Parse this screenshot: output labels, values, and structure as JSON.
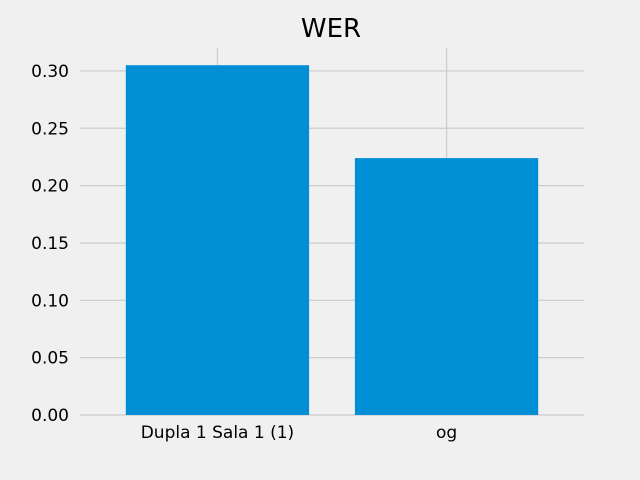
{
  "chart_data": {
    "type": "bar",
    "title": "WER",
    "xlabel": "",
    "ylabel": "",
    "categories": [
      "Dupla 1 Sala 1 (1)",
      "og"
    ],
    "values": [
      0.305,
      0.224
    ],
    "ylim": [
      0,
      0.32
    ],
    "yticks": [
      0.0,
      0.05,
      0.1,
      0.15,
      0.2,
      0.25,
      0.3
    ],
    "ytick_labels": [
      "0.00",
      "0.05",
      "0.10",
      "0.15",
      "0.20",
      "0.25",
      "0.30"
    ],
    "grid": true,
    "colors": {
      "bar": "#008fd5",
      "background": "#f0f0f0",
      "grid": "#cbcbcb"
    }
  }
}
